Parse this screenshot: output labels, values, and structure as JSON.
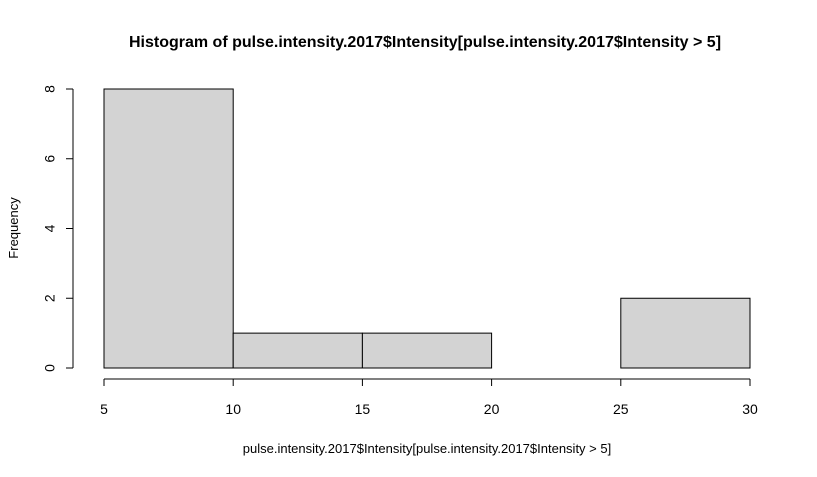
{
  "chart_data": {
    "type": "bar",
    "title": "Histogram of pulse.intensity.2017$Intensity[pulse.intensity.2017$Intensity > 5]",
    "xlabel": "pulse.intensity.2017$Intensity[pulse.intensity.2017$Intensity > 5]",
    "ylabel": "Frequency",
    "bins": [
      {
        "x0": 5,
        "x1": 10,
        "count": 8
      },
      {
        "x0": 10,
        "x1": 15,
        "count": 1
      },
      {
        "x0": 15,
        "x1": 20,
        "count": 1
      },
      {
        "x0": 20,
        "x1": 25,
        "count": 0
      },
      {
        "x0": 25,
        "x1": 30,
        "count": 2
      }
    ],
    "xticks": [
      "5",
      "10",
      "15",
      "20",
      "25",
      "30"
    ],
    "yticks": [
      "0",
      "2",
      "4",
      "6",
      "8"
    ],
    "xlim": [
      5,
      30
    ],
    "ylim": [
      0,
      8
    ],
    "grid": false,
    "colors": {
      "bar_fill": "#d3d3d3",
      "bar_stroke": "#000000"
    }
  }
}
